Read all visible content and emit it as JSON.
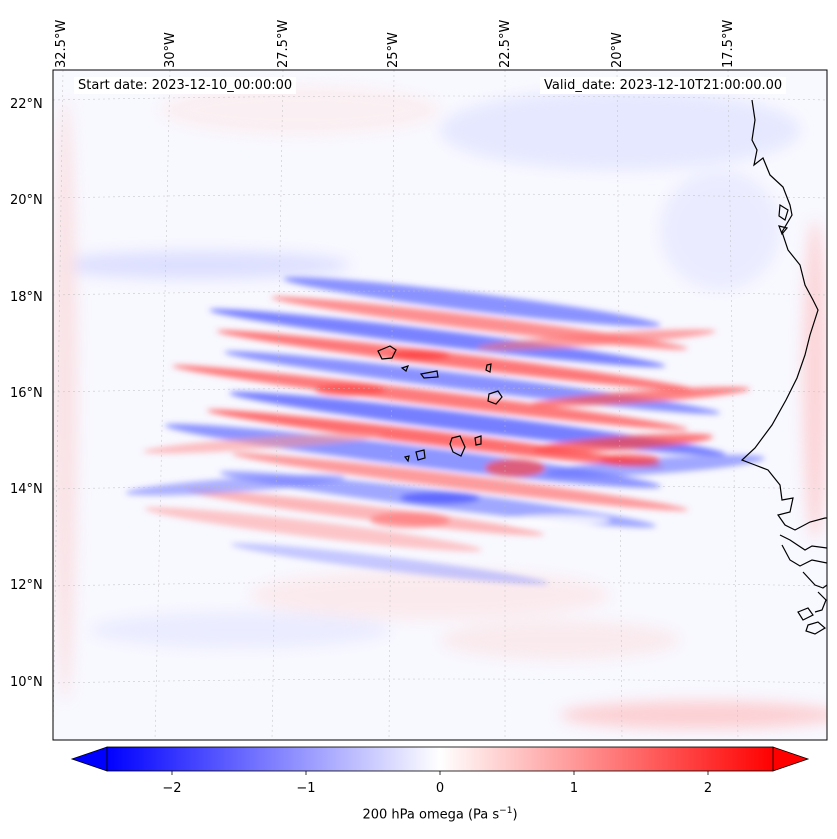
{
  "map": {
    "start_date": "Start date: 2023-12-10_00:00:00",
    "valid_date": "Valid_date: 2023-12-10T21:00:00.00",
    "lon_labels": [
      "32.5°W",
      "30°W",
      "27.5°W",
      "25°W",
      "22.5°W",
      "20°W",
      "17.5°W"
    ],
    "lat_labels": [
      "22°N",
      "20°N",
      "18°N",
      "16°N",
      "14°N",
      "12°N",
      "10°N"
    ],
    "extent": {
      "lon_min": -33.3,
      "lon_max": -15.0,
      "lat_min": 8.9,
      "lat_max": 22.7
    }
  },
  "colorbar": {
    "ticks": [
      "−2",
      "−1",
      "0",
      "1",
      "2"
    ],
    "tick_values": [
      -2,
      -1,
      0,
      1,
      2
    ],
    "range": [
      -2.5,
      2.5
    ],
    "label_main": "200 hPa omega (Pa s",
    "label_sup": "−1",
    "label_close": ")",
    "colors": {
      "min": "#0000ff",
      "mid": "#ffffff",
      "max": "#ff0000"
    }
  }
}
